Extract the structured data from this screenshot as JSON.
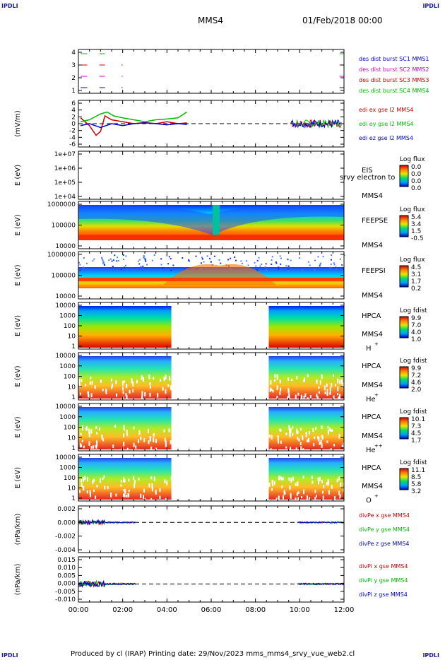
{
  "corner_label": "IPDLI",
  "header": {
    "spacecraft": "MMS4",
    "datetime": "01/Feb/2018 00:00"
  },
  "footer": {
    "text": "Produced by cl (IRAP)   Printing date: 29/Nov/2023   mms_mms4_srvy_vue_web2.cl"
  },
  "chart_data": {
    "type": "line",
    "x_axis": {
      "ticks": [
        "00:00",
        "02:00",
        "04:00",
        "06:00",
        "08:00",
        "10:00",
        "12:00"
      ],
      "range_hours": [
        0,
        12
      ]
    },
    "panels": [
      {
        "id": "burst",
        "yticks": [
          "4",
          "3",
          "2",
          "1"
        ],
        "ylabel": "",
        "legend": [
          {
            "text": "des dist burst SC1 MMS1",
            "color": "#0000cc"
          },
          {
            "text": "des dist burst SC2 MMS2",
            "color": "#cc00cc"
          },
          {
            "text": "des dist burst SC3 MMS3",
            "color": "#cc0000"
          },
          {
            "text": "des dist burst SC4 MMS4",
            "color": "#00bb00"
          }
        ],
        "intervals": [
          {
            "level": 4,
            "color": "#00bb00",
            "x": [
              [
                0.1,
                0.4
              ],
              [
                0.95,
                1.2
              ],
              [
                11.8,
                12
              ]
            ]
          },
          {
            "level": 3,
            "color": "#cc0000",
            "x": [
              [
                0.1,
                0.4
              ],
              [
                0.95,
                1.2
              ],
              [
                1.95,
                2.0
              ],
              [
                11.8,
                12
              ]
            ]
          },
          {
            "level": 2,
            "color": "#cc00cc",
            "x": [
              [
                0.1,
                0.4
              ],
              [
                0.95,
                1.2
              ],
              [
                1.95,
                2.0
              ],
              [
                11.8,
                12
              ]
            ]
          },
          {
            "level": 1,
            "color": "#0000cc",
            "x": [
              [
                0.1,
                0.4
              ],
              [
                0.95,
                1.2
              ],
              [
                1.95,
                2.0
              ],
              [
                11.8,
                12
              ]
            ]
          }
        ]
      },
      {
        "id": "edi",
        "ylabel": "(mV/m)",
        "yticks": [
          "6",
          "4",
          "2",
          "0",
          "-2",
          "-4",
          "-6"
        ],
        "ylim": [
          -6,
          6
        ],
        "legend": [
          {
            "text": "edi ex gse l2 MMS4",
            "color": "#cc0000"
          },
          {
            "text": "edi ey gse l2 MMS4",
            "color": "#00bb00"
          },
          {
            "text": "edi ez gse l2 MMS4",
            "color": "#0000cc"
          }
        ],
        "series": [
          {
            "name": "edi ex gse l2 MMS4",
            "color": "#cc0000",
            "x": [
              0.1,
              0.5,
              0.8,
              1.0,
              1.2,
              1.5,
              2.0,
              2.5,
              3.0,
              3.5,
              4.0,
              4.5,
              4.9
            ],
            "y": [
              1.5,
              -0.5,
              -3,
              -2,
              2,
              1,
              0.5,
              0,
              0.3,
              0,
              0.5,
              0,
              0.2
            ]
          },
          {
            "name": "edi ey gse l2 MMS4",
            "color": "#00bb00",
            "x": [
              0.1,
              0.5,
              1.0,
              1.3,
              1.6,
              2.0,
              2.5,
              3.0,
              3.5,
              4.0,
              4.5,
              4.9
            ],
            "y": [
              0.5,
              1,
              2.5,
              3,
              2,
              1.5,
              1,
              0.5,
              1,
              1.2,
              1.5,
              3
            ]
          },
          {
            "name": "edi ez gse l2 MMS4",
            "color": "#0000cc",
            "x": [
              0.1,
              0.5,
              1.0,
              1.5,
              2.0,
              2.5,
              3.0,
              3.5,
              4.0,
              4.5,
              4.9
            ],
            "y": [
              -0.5,
              0,
              -1,
              0,
              -0.5,
              0,
              0.2,
              0,
              -0.3,
              0,
              -0.2
            ]
          }
        ],
        "segments2": {
          "x": [
            9.6,
            11.9
          ],
          "amp": 2
        }
      },
      {
        "id": "eis",
        "ylabel": "E (eV)",
        "yticks": [
          "1e+07",
          "1e+06",
          "1e+05",
          "1e+04"
        ],
        "instrument": "EIS",
        "sc": "MMS4",
        "overlap_label": "srvy electron to",
        "cbar_title": "Log flux",
        "cbar_ticks": [
          "0.0",
          "0.0",
          "0.0",
          "0.0"
        ],
        "data": "none"
      },
      {
        "id": "feepse",
        "ylabel": "E (eV)",
        "yticks": [
          "1000000",
          "100000",
          "10000"
        ],
        "instrument": "FEEPSE",
        "sc": "MMS4",
        "cbar_title": "Log flux",
        "cbar_ticks": [
          "5.4",
          "3.4",
          "1.5",
          "-0.5"
        ]
      },
      {
        "id": "feepsi",
        "ylabel": "E (eV)",
        "yticks": [
          "1000000",
          "100000",
          "10000"
        ],
        "instrument": "FEEPSI",
        "sc": "MMS4",
        "cbar_title": "Log flux",
        "cbar_ticks": [
          "4.5",
          "3.1",
          "1.7",
          "0.2"
        ]
      },
      {
        "id": "hpca_h",
        "ylabel": "E (eV)",
        "yticks": [
          "10000",
          "1000",
          "100",
          "10",
          "1"
        ],
        "instrument": "HPCA",
        "sc": "MMS4",
        "species": "H",
        "species_charge": "+",
        "cbar_title": "Log fdist",
        "cbar_ticks": [
          "9.9",
          "7.0",
          "4.0",
          "1.0"
        ],
        "coverage_hours": [
          [
            0,
            4.2
          ],
          [
            8.6,
            12
          ]
        ]
      },
      {
        "id": "hpca_he1",
        "ylabel": "E (eV)",
        "yticks": [
          "10000",
          "1000",
          "100",
          "10",
          "1"
        ],
        "instrument": "HPCA",
        "sc": "MMS4",
        "species": "He",
        "species_charge": "+",
        "cbar_title": "Log fdist",
        "cbar_ticks": [
          "9.9",
          "7.2",
          "4.6",
          "2.0"
        ],
        "coverage_hours": [
          [
            0,
            4.2
          ],
          [
            8.6,
            12
          ]
        ]
      },
      {
        "id": "hpca_he2",
        "ylabel": "E (eV)",
        "yticks": [
          "10000",
          "1000",
          "100",
          "10",
          "1"
        ],
        "instrument": "HPCA",
        "sc": "MMS4",
        "species": "He",
        "species_charge": "++",
        "cbar_title": "Log fdist",
        "cbar_ticks": [
          "10.1",
          "7.3",
          "4.5",
          "1.7"
        ],
        "coverage_hours": [
          [
            0,
            4.2
          ],
          [
            8.6,
            12
          ]
        ]
      },
      {
        "id": "hpca_o",
        "ylabel": "E (eV)",
        "yticks": [
          "10000",
          "1000",
          "100",
          "10",
          "1"
        ],
        "instrument": "HPCA",
        "sc": "MMS4",
        "species": "O",
        "species_charge": "+",
        "cbar_title": "Log fdist",
        "cbar_ticks": [
          "11.1",
          "8.5",
          "5.8",
          "3.2"
        ],
        "coverage_hours": [
          [
            0,
            4.2
          ],
          [
            8.6,
            12
          ]
        ]
      },
      {
        "id": "divpe",
        "ylabel": "(nPa/km)",
        "yticks": [
          "0.002",
          "0.000",
          "-0.002",
          "-0.004"
        ],
        "ylim": [
          -0.0055,
          0.003
        ],
        "legend": [
          {
            "text": "divPe x gse MMS4",
            "color": "#cc0000"
          },
          {
            "text": "divPe y gse MMS4",
            "color": "#00bb00"
          },
          {
            "text": "divPe z gse MMS4",
            "color": "#0000cc"
          }
        ],
        "coverage_hours": [
          [
            0,
            2.6
          ],
          [
            9.9,
            12
          ]
        ]
      },
      {
        "id": "divpi",
        "ylabel": "(nPa/km)",
        "yticks": [
          "0.015",
          "0.010",
          "0.005",
          "0.000",
          "-0.005",
          "-0.010"
        ],
        "ylim": [
          -0.012,
          0.018
        ],
        "legend": [
          {
            "text": "divPi x gse MMS4",
            "color": "#cc0000"
          },
          {
            "text": "divPi y gse MMS4",
            "color": "#00bb00"
          },
          {
            "text": "divPi z gse MMS4",
            "color": "#0000cc"
          }
        ],
        "coverage_hours": [
          [
            0,
            2.6
          ],
          [
            9.9,
            12
          ]
        ]
      }
    ]
  }
}
